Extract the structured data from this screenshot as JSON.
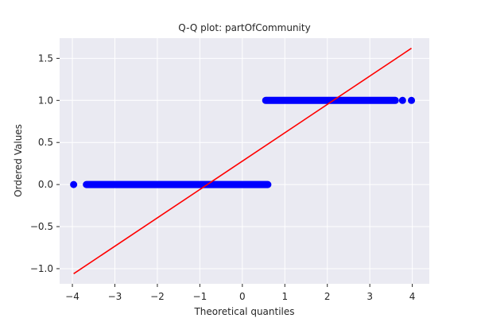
{
  "chart_data": {
    "type": "scatter",
    "title": "Q-Q plot: partOfCommunity",
    "xlabel": "Theoretical quantiles",
    "ylabel": "Ordered Values",
    "xlim": [
      -4.3,
      4.4
    ],
    "ylim": [
      -1.18,
      1.74
    ],
    "xticks": [
      -4,
      -3,
      -2,
      -1,
      0,
      1,
      2,
      3,
      4
    ],
    "xtick_labels": [
      "−4",
      "−3",
      "−2",
      "−1",
      "0",
      "1",
      "2",
      "3",
      "4"
    ],
    "yticks": [
      -1.0,
      -0.5,
      0.0,
      0.5,
      1.0,
      1.5
    ],
    "ytick_labels": [
      "−1.0",
      "−0.5",
      "0.0",
      "0.5",
      "1.0",
      "1.5"
    ],
    "grid": true,
    "background_color": "#eaeaf2",
    "series": [
      {
        "kind": "points",
        "color": "#0000ff",
        "segments": [
          {
            "y": 0.0,
            "x_start": -3.67,
            "x_end": 0.6,
            "isolated": [
              -3.97
            ]
          },
          {
            "y": 1.0,
            "x_start": 0.55,
            "x_end": 3.6,
            "isolated": [
              3.77,
              3.98
            ]
          }
        ]
      },
      {
        "kind": "fit-line",
        "color": "#ff0000",
        "x": [
          -3.97,
          3.98
        ],
        "y": [
          -1.06,
          1.62
        ]
      }
    ]
  }
}
